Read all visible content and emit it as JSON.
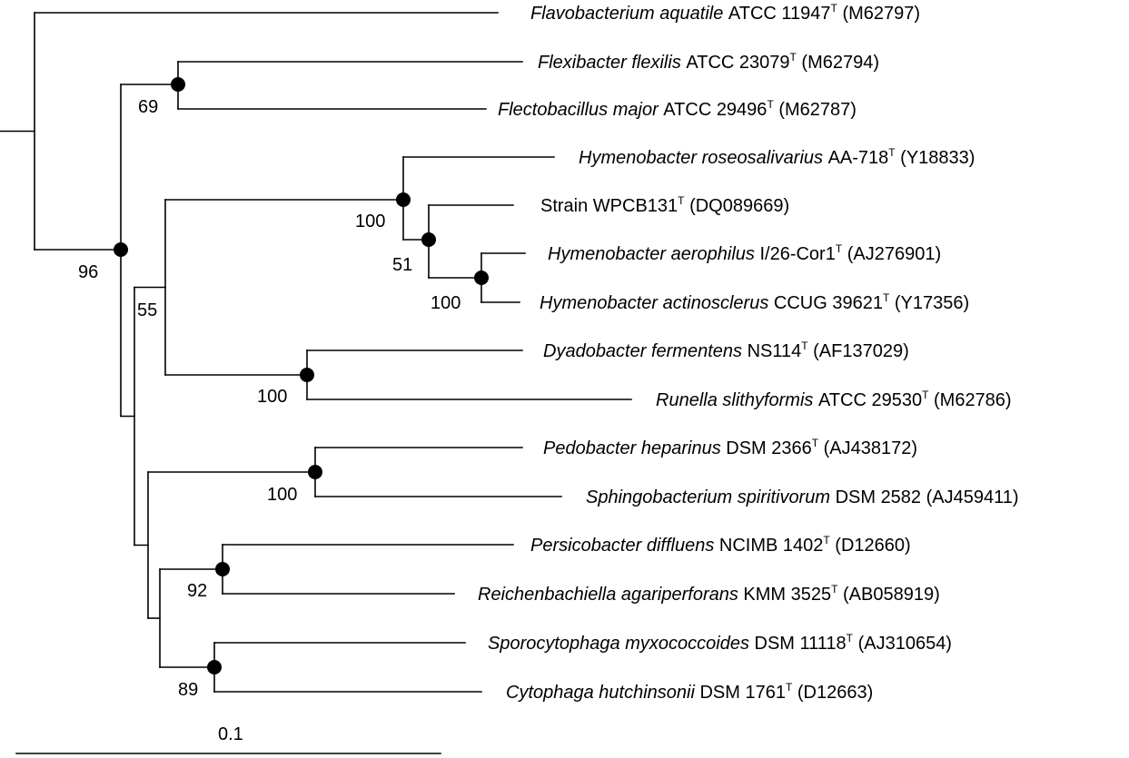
{
  "tree": {
    "leaves": [
      {
        "id": "flavo",
        "italic": "Flavobacterium aquatile",
        "rest": "ATCC 11947",
        "type_strain": true,
        "accession": "(M62797)"
      },
      {
        "id": "flexi",
        "italic": "Flexibacter flexilis",
        "rest": "ATCC 23079",
        "type_strain": true,
        "accession": "(M62794)"
      },
      {
        "id": "flecto",
        "italic": "Flectobacillus major",
        "rest": "ATCC 29496",
        "type_strain": true,
        "accession": "(M62787)"
      },
      {
        "id": "hroseo",
        "italic": "Hymenobacter roseosalivarius",
        "rest": "AA-718",
        "type_strain": true,
        "accession": "(Y18833)"
      },
      {
        "id": "wpcb",
        "italic": "",
        "rest": "Strain WPCB131",
        "type_strain": true,
        "accession": "(DQ089669)"
      },
      {
        "id": "haero",
        "italic": "Hymenobacter aerophilus",
        "rest": "I/26-Cor1",
        "type_strain": true,
        "accession": "(AJ276901)"
      },
      {
        "id": "hactino",
        "italic": "Hymenobacter actinosclerus",
        "rest": "CCUG 39621",
        "type_strain": true,
        "accession": "(Y17356)"
      },
      {
        "id": "dyado",
        "italic": "Dyadobacter fermentens",
        "rest": "NS114",
        "type_strain": true,
        "accession": "(AF137029)"
      },
      {
        "id": "runella",
        "italic": "Runella slithyformis",
        "rest": "ATCC 29530",
        "type_strain": true,
        "accession": "(M62786)"
      },
      {
        "id": "pedo",
        "italic": "Pedobacter heparinus",
        "rest": "DSM 2366",
        "type_strain": true,
        "accession": "(AJ438172)"
      },
      {
        "id": "sphingo",
        "italic": "Sphingobacterium spiritivorum",
        "rest": "DSM 2582",
        "type_strain": false,
        "accession": "(AJ459411)"
      },
      {
        "id": "persico",
        "italic": "Persicobacter diffluens",
        "rest": "NCIMB 1402",
        "type_strain": true,
        "accession": "(D12660)"
      },
      {
        "id": "reichen",
        "italic": "Reichenbachiella agariperforans",
        "rest": "KMM 3525",
        "type_strain": true,
        "accession": "(AB058919)"
      },
      {
        "id": "sporo",
        "italic": "Sporocytophaga myxococcoides",
        "rest": "DSM 11118",
        "type_strain": true,
        "accession": "(AJ310654)"
      },
      {
        "id": "cyto",
        "italic": "Cytophaga hutchinsonii",
        "rest": "DSM 1761",
        "type_strain": true,
        "accession": "(D12663)"
      }
    ],
    "type_strain_marker": "T",
    "support_values": [
      "96",
      "69",
      "55",
      "100",
      "51",
      "100",
      "100",
      "100",
      "92",
      "89"
    ],
    "scale_bar_label": "0.1"
  }
}
